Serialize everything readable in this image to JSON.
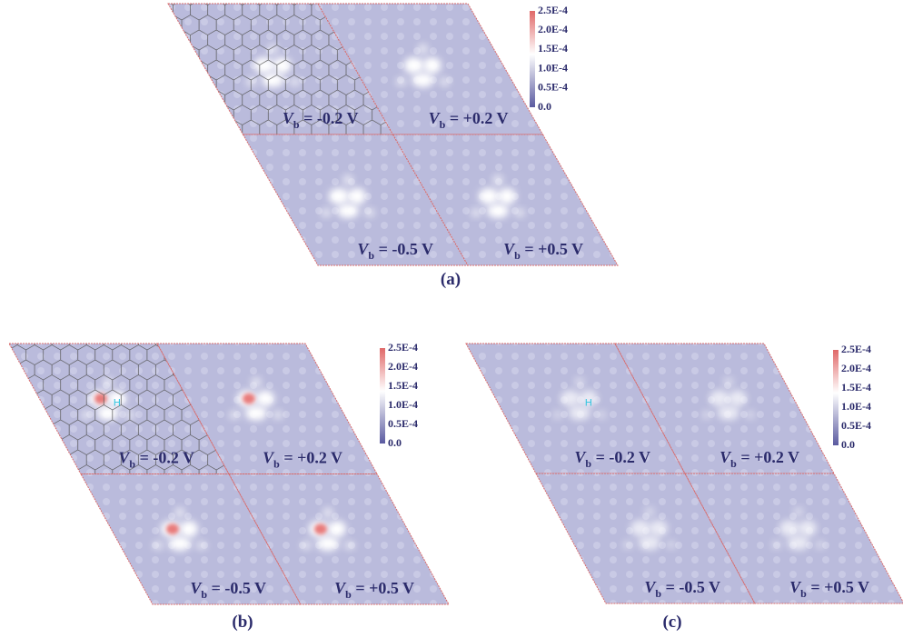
{
  "panels": [
    {
      "caption": "(a)",
      "colorbar": [
        "2.5E-4",
        "2.0E-4",
        "1.5E-4",
        "1.0E-4",
        "0.5E-4",
        "0.0"
      ],
      "subpanels": [
        {
          "symbol": "V",
          "subscript": "b",
          "text": " = -0.2 V"
        },
        {
          "symbol": "V",
          "subscript": "b",
          "text": " = +0.2 V"
        },
        {
          "symbol": "V",
          "subscript": "b",
          "text": " = -0.5 V"
        },
        {
          "symbol": "V",
          "subscript": "b",
          "text": " = +0.5 V"
        }
      ]
    },
    {
      "caption": "(b)",
      "marker": "H",
      "colorbar": [
        "2.5E-4",
        "2.0E-4",
        "1.5E-4",
        "1.0E-4",
        "0.5E-4",
        "0.0"
      ],
      "subpanels": [
        {
          "symbol": "V",
          "subscript": "b",
          "text": " = -0.2 V"
        },
        {
          "symbol": "V",
          "subscript": "b",
          "text": " = +0.2 V"
        },
        {
          "symbol": "V",
          "subscript": "b",
          "text": " = -0.5 V"
        },
        {
          "symbol": "V",
          "subscript": "b",
          "text": " = +0.5 V"
        }
      ]
    },
    {
      "caption": "(c)",
      "marker": "H",
      "colorbar": [
        "2.5E-4",
        "2.0E-4",
        "1.5E-4",
        "1.0E-4",
        "0.5E-4",
        "0.0"
      ],
      "subpanels": [
        {
          "symbol": "V",
          "subscript": "b",
          "text": " = -0.2 V"
        },
        {
          "symbol": "V",
          "subscript": "b",
          "text": " = +0.2 V"
        },
        {
          "symbol": "V",
          "subscript": "b",
          "text": " = -0.5 V"
        },
        {
          "symbol": "V",
          "subscript": "b",
          "text": " = +0.5 V"
        }
      ]
    }
  ]
}
